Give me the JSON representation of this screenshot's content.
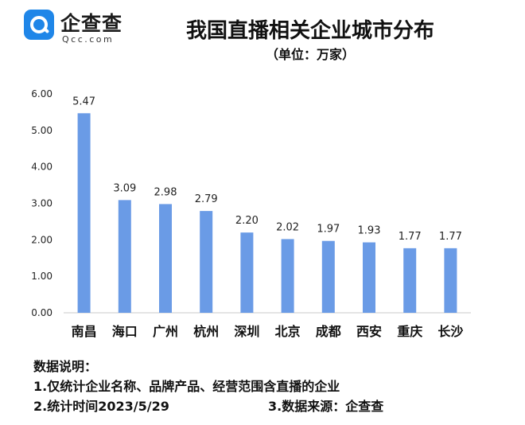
{
  "logo": {
    "name": "企查查",
    "sub": "Qcc.com"
  },
  "title": "我国直播相关企业城市分布",
  "subtitle": "（单位：万家）",
  "chart_data": {
    "type": "bar",
    "categories": [
      "南昌",
      "海口",
      "广州",
      "杭州",
      "深圳",
      "北京",
      "成都",
      "西安",
      "重庆",
      "长沙"
    ],
    "values": [
      5.47,
      3.09,
      2.98,
      2.79,
      2.2,
      2.02,
      1.97,
      1.93,
      1.77,
      1.77
    ],
    "value_labels": [
      "5.47",
      "3.09",
      "2.98",
      "2.79",
      "2.20",
      "2.02",
      "1.97",
      "1.93",
      "1.77",
      "1.77"
    ],
    "ylim": [
      0,
      6
    ],
    "yticks": [
      "0.00",
      "1.00",
      "2.00",
      "3.00",
      "4.00",
      "5.00",
      "6.00"
    ],
    "grid": false,
    "legend": "none",
    "bar_color": "#6a9be6"
  },
  "notes": {
    "heading": "数据说明：",
    "line1": "1.仅统计企业名称、品牌产品、经营范围含直播的企业",
    "line2": "2.统计时间2023/5/29",
    "line3": "3.数据来源：企查查"
  }
}
